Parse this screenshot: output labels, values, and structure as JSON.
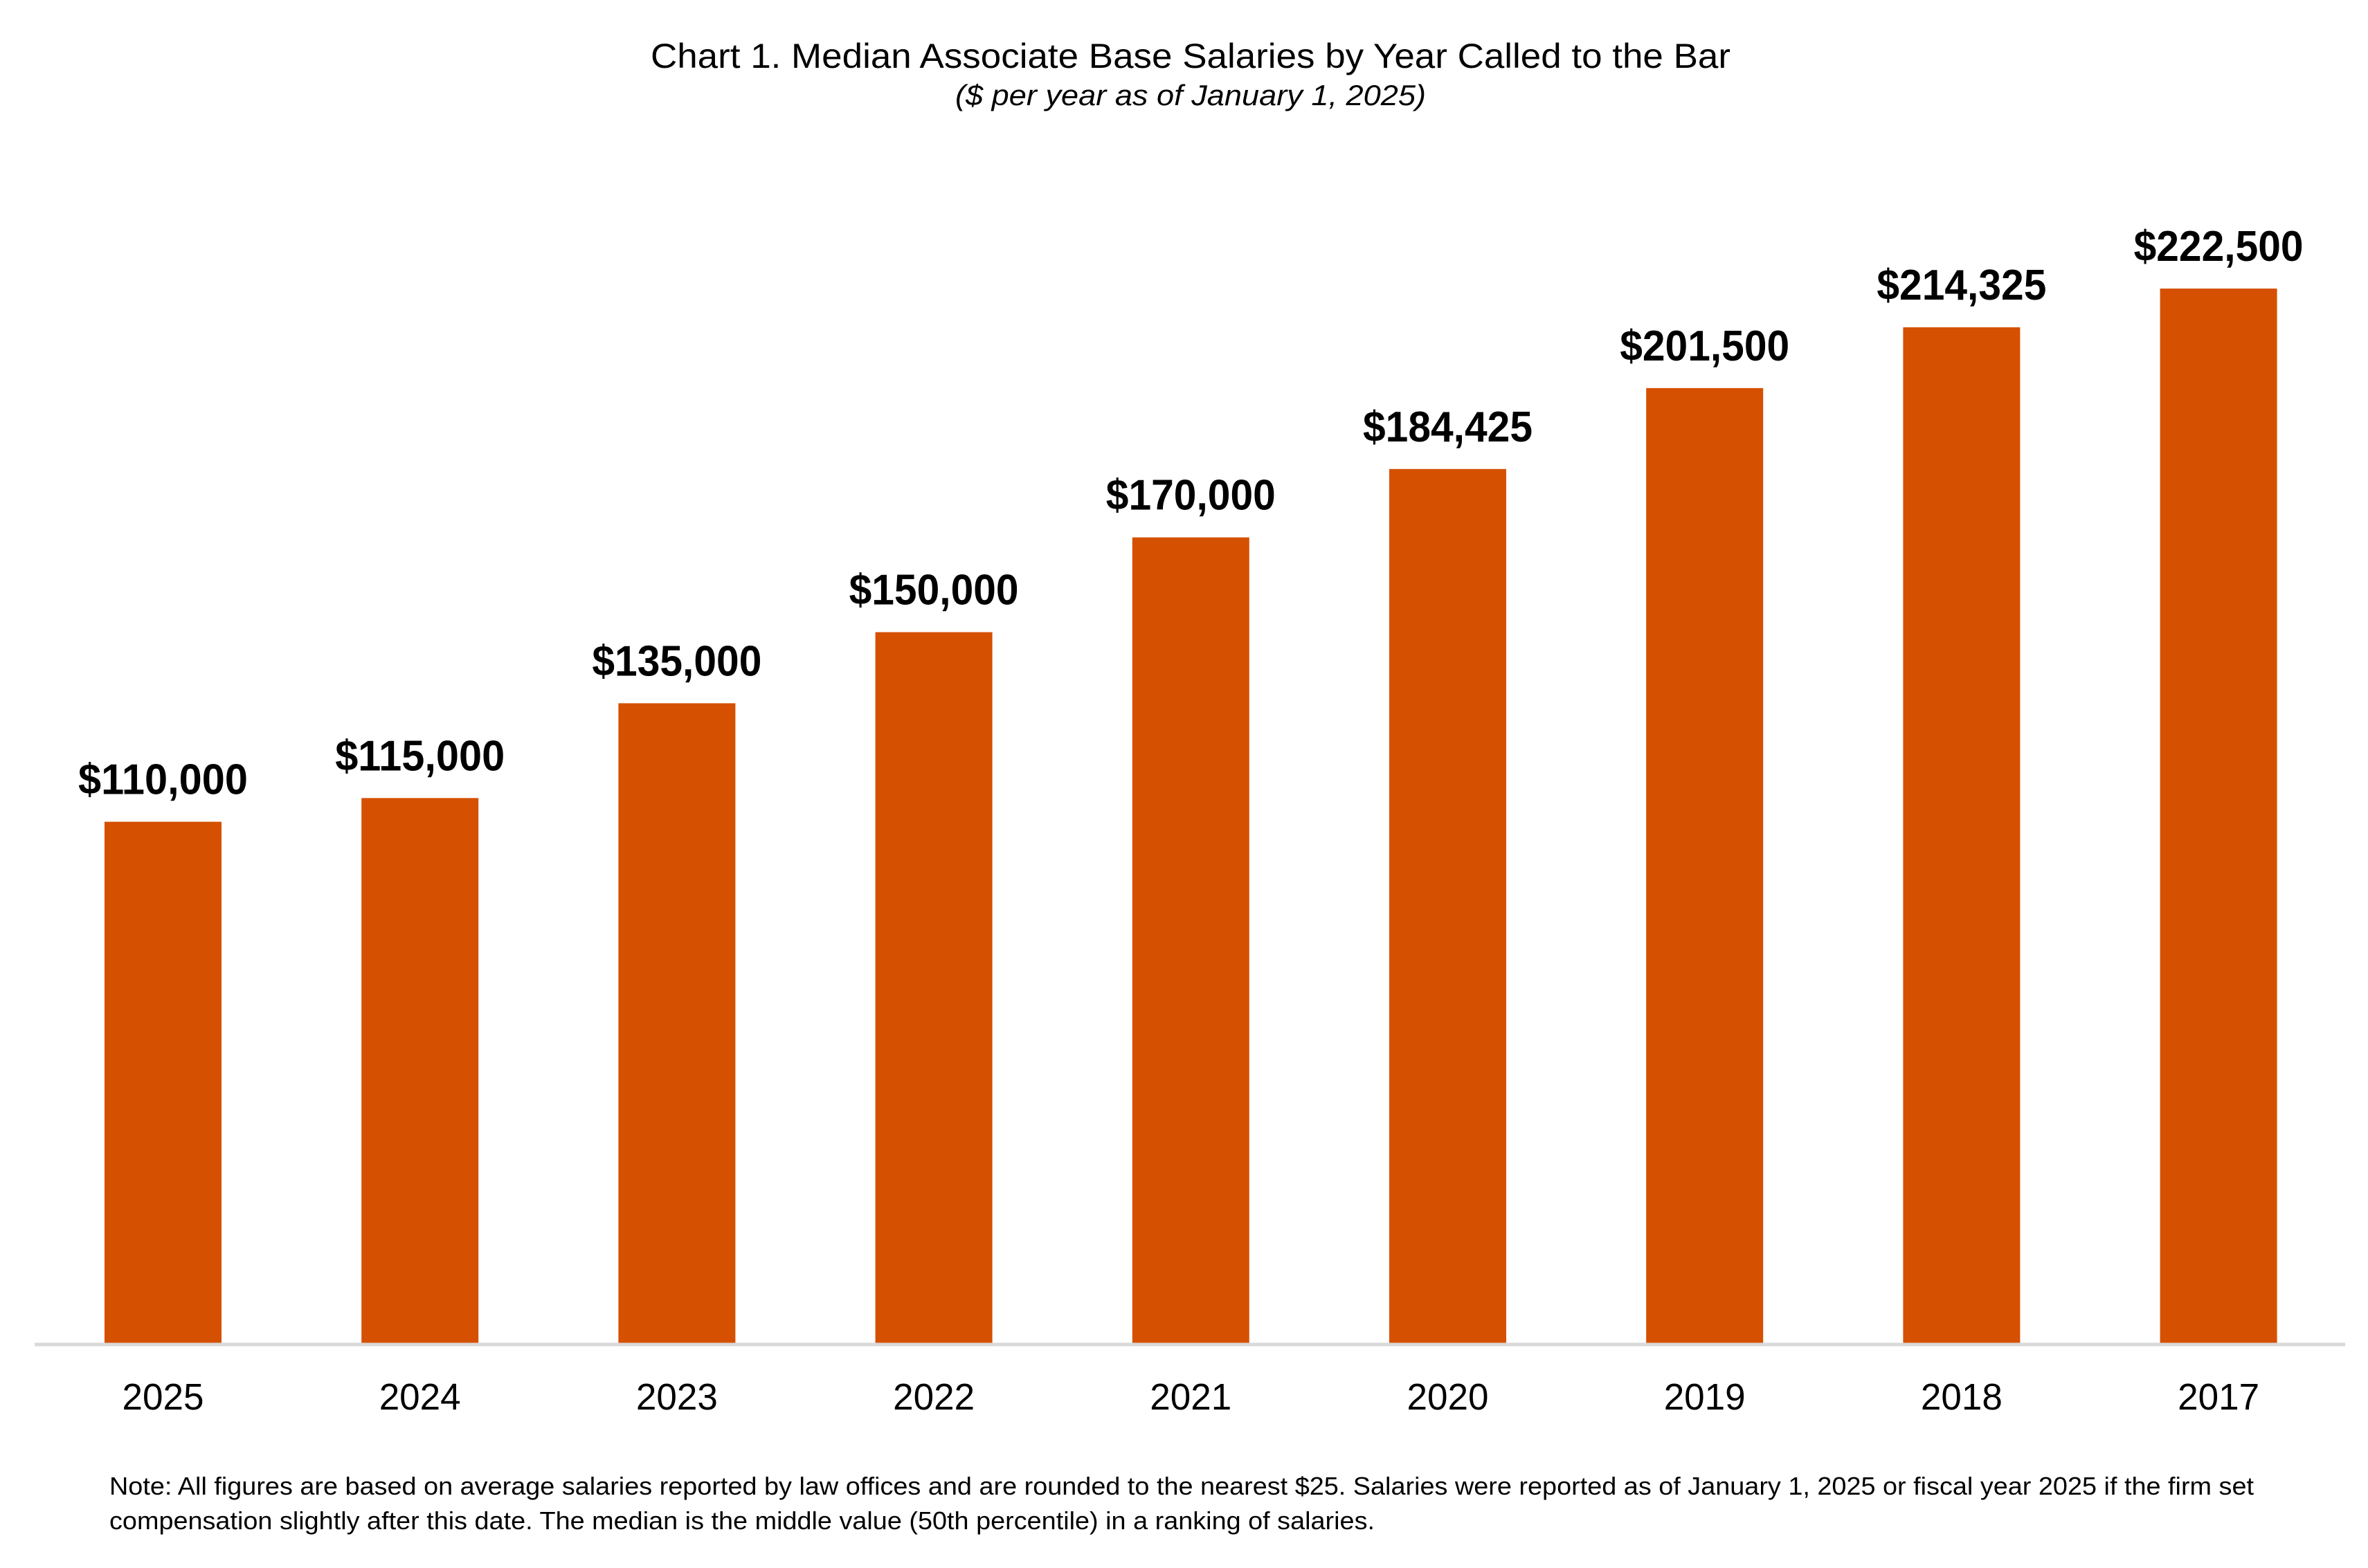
{
  "chart_data": {
    "type": "bar",
    "title": "Chart 1. Median Associate Base Salaries by Year Called to the Bar",
    "subtitle": "($ per year as of January 1, 2025)",
    "xlabel": "",
    "ylabel": "",
    "categories": [
      "2025",
      "2024",
      "2023",
      "2022",
      "2021",
      "2020",
      "2019",
      "2018",
      "2017"
    ],
    "values": [
      110000,
      115000,
      135000,
      150000,
      170000,
      184425,
      201500,
      214325,
      222500
    ],
    "data_labels": [
      "$110,000",
      "$115,000",
      "$135,000",
      "$150,000",
      "$170,000",
      "$184,425",
      "$201,500",
      "$214,325",
      "$222,500"
    ],
    "ylim": [
      0,
      222500
    ],
    "grid": false,
    "y_axis_shown": false,
    "legend": "none",
    "bar_color": "#D55000",
    "axis_color": "#D9D9D9",
    "note_lines": [
      "Note: All figures are based on average salaries reported by law offices and are rounded to the nearest $25. Salaries were reported as of January 1, 2025 or fiscal year 2025 if the firm set",
      "compensation slightly after this date. The median is the middle value (50th percentile) in a ranking of salaries."
    ]
  }
}
